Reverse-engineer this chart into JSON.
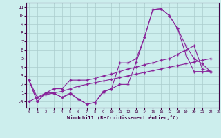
{
  "xlabel": "Windchill (Refroidissement éolien,°C)",
  "bg_color": "#cceeed",
  "grid_color": "#aacccc",
  "line_color": "#882299",
  "ylim": [
    -0.7,
    11.5
  ],
  "xlim": [
    -0.3,
    23
  ],
  "yticks": [
    0,
    1,
    2,
    3,
    4,
    5,
    6,
    7,
    8,
    9,
    10,
    11
  ],
  "xticks": [
    0,
    1,
    2,
    3,
    4,
    5,
    6,
    7,
    8,
    9,
    10,
    11,
    12,
    13,
    14,
    15,
    16,
    17,
    18,
    19,
    20,
    21,
    22,
    23
  ],
  "series": [
    {
      "x": [
        0,
        1,
        2,
        3,
        4,
        5,
        6,
        7,
        8,
        9,
        10,
        11,
        12,
        13,
        14,
        15,
        16,
        17,
        18,
        19,
        20,
        21,
        22
      ],
      "y": [
        2.5,
        0.0,
        1.0,
        1.0,
        0.5,
        1.0,
        0.3,
        -0.3,
        -0.1,
        1.2,
        1.5,
        2.0,
        2.0,
        4.6,
        7.5,
        10.7,
        10.8,
        10.0,
        8.5,
        6.5,
        5.0,
        4.4,
        3.5
      ]
    },
    {
      "x": [
        0,
        1,
        2,
        3,
        4,
        5,
        6,
        7,
        8,
        9,
        10,
        11,
        12,
        13,
        14,
        15,
        16,
        17,
        18,
        19,
        20,
        21,
        22
      ],
      "y": [
        2.5,
        0.0,
        1.0,
        1.0,
        0.5,
        0.9,
        0.3,
        -0.3,
        -0.1,
        1.1,
        1.5,
        4.5,
        4.5,
        5.0,
        7.5,
        10.7,
        10.8,
        10.0,
        8.5,
        5.5,
        3.5,
        3.5,
        3.5
      ]
    },
    {
      "x": [
        0,
        1,
        2,
        3,
        4,
        5,
        6,
        7,
        8,
        9,
        10,
        11,
        12,
        13,
        14,
        15,
        16,
        17,
        18,
        19,
        20,
        21,
        22
      ],
      "y": [
        2.5,
        0.5,
        1.0,
        1.5,
        1.5,
        2.5,
        2.5,
        2.5,
        2.7,
        3.0,
        3.2,
        3.5,
        3.8,
        4.0,
        4.3,
        4.5,
        4.8,
        5.0,
        5.5,
        6.0,
        6.5,
        3.8,
        3.5
      ]
    },
    {
      "x": [
        0,
        1,
        2,
        3,
        4,
        5,
        6,
        7,
        8,
        9,
        10,
        11,
        12,
        13,
        14,
        15,
        16,
        17,
        18,
        19,
        20,
        21,
        22
      ],
      "y": [
        0.0,
        0.5,
        0.8,
        1.0,
        1.2,
        1.5,
        1.8,
        2.0,
        2.2,
        2.4,
        2.6,
        2.8,
        3.0,
        3.2,
        3.4,
        3.6,
        3.8,
        4.0,
        4.2,
        4.4,
        4.6,
        4.8,
        5.0
      ]
    }
  ]
}
